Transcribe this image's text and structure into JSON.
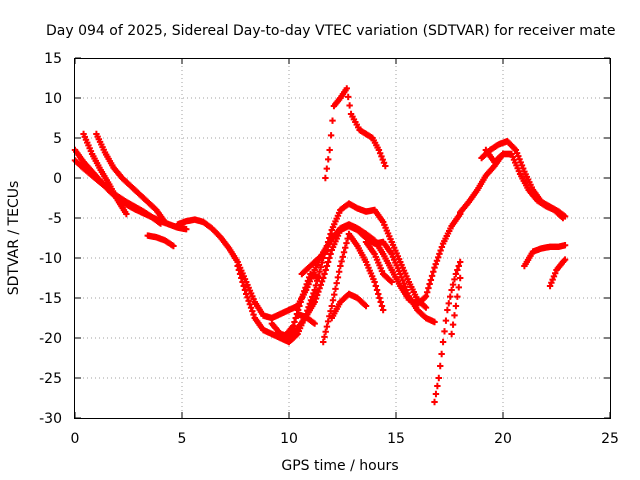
{
  "chart_data": {
    "type": "scatter",
    "title": "Day 094 of 2025, Sidereal Day-to-day VTEC variation (SDTVAR) for receiver mate",
    "xlabel": "GPS time / hours",
    "ylabel": "SDTVAR / TECUs",
    "xlim": [
      0,
      25
    ],
    "ylim": [
      -30,
      15
    ],
    "xticks": [
      "0",
      "5",
      "10",
      "15",
      "20",
      "25"
    ],
    "yticks": [
      "15",
      "10",
      "5",
      "0",
      "-5",
      "-10",
      "-15",
      "-20",
      "-25",
      "-30"
    ],
    "grid": true,
    "marker": "+",
    "color": "#ff0000",
    "series": [
      {
        "x": [
          0.0,
          0.4,
          0.8,
          1.2,
          1.6,
          2.0,
          2.4,
          2.8,
          3.2,
          3.6,
          4.0,
          4.4,
          4.8,
          5.2
        ],
        "y": [
          3.5,
          2.0,
          0.8,
          -0.4,
          -1.6,
          -2.6,
          -3.3,
          -3.9,
          -4.4,
          -4.9,
          -5.4,
          -5.8,
          -6.2,
          -6.4
        ]
      },
      {
        "x": [
          0.0,
          0.4,
          0.8,
          1.2,
          1.6,
          2.0,
          2.4,
          2.8,
          3.2,
          3.6,
          4.0
        ],
        "y": [
          2.2,
          1.2,
          0.3,
          -0.6,
          -1.5,
          -2.3,
          -3.0,
          -3.6,
          -4.2,
          -4.9,
          -5.7
        ]
      },
      {
        "x": [
          0.4,
          0.8,
          1.2,
          1.6,
          2.0,
          2.4
        ],
        "y": [
          5.5,
          3.0,
          1.0,
          -0.8,
          -2.8,
          -4.5
        ]
      },
      {
        "x": [
          1.0,
          1.4,
          1.8,
          2.2,
          2.6,
          3.0,
          3.4,
          3.8,
          4.2
        ],
        "y": [
          5.5,
          3.2,
          1.3,
          0.0,
          -1.0,
          -2.0,
          -3.0,
          -4.0,
          -5.5
        ]
      },
      {
        "x": [
          3.4,
          3.8,
          4.2,
          4.6
        ],
        "y": [
          -7.2,
          -7.4,
          -7.8,
          -8.5
        ]
      },
      {
        "x": [
          4.8,
          5.2,
          5.6,
          6.0,
          6.4,
          6.8,
          7.2,
          7.6,
          8.0,
          8.4,
          8.8,
          9.2,
          9.6,
          10.0,
          10.4,
          10.8,
          11.2,
          11.6,
          12.0,
          12.4,
          12.8,
          13.2,
          13.6,
          14.0,
          14.4,
          14.8,
          15.2,
          15.6,
          16.0,
          16.4,
          16.8,
          17.2,
          17.6,
          18.0
        ],
        "y": [
          -5.8,
          -5.4,
          -5.2,
          -5.5,
          -6.3,
          -7.4,
          -8.8,
          -10.5,
          -13.0,
          -15.5,
          -17.2,
          -17.5,
          -17.0,
          -16.5,
          -16.0,
          -14.0,
          -11.5,
          -9.3,
          -7.6,
          -6.3,
          -5.8,
          -6.3,
          -7.0,
          -7.8,
          -9.5,
          -11.5,
          -13.5,
          -15.2,
          -15.8,
          -14.8,
          -11.2,
          -8.2,
          -6.0,
          -4.5
        ]
      },
      {
        "x": [
          7.6,
          8.0,
          8.4,
          8.8,
          9.2,
          9.6,
          10.0,
          10.4,
          10.8,
          11.2,
          11.6,
          12.0,
          12.4,
          12.8,
          13.2,
          13.6,
          14.0,
          14.4,
          14.8,
          15.2,
          15.6,
          16.0,
          16.4
        ],
        "y": [
          -11.0,
          -14.5,
          -17.5,
          -19.0,
          -19.5,
          -20.0,
          -20.5,
          -19.5,
          -17.0,
          -14.0,
          -10.0,
          -6.5,
          -4.0,
          -3.2,
          -3.8,
          -4.2,
          -4.0,
          -5.5,
          -8.0,
          -10.5,
          -13.0,
          -15.2,
          -16.2
        ]
      },
      {
        "x": [
          9.2,
          9.6,
          10.0,
          10.4,
          10.8,
          11.2,
          11.6,
          12.0,
          12.4,
          12.8,
          13.2,
          13.6,
          14.0,
          14.4,
          14.8,
          15.2,
          15.6,
          16.0,
          16.4,
          16.8
        ],
        "y": [
          -18.2,
          -19.5,
          -19.8,
          -18.8,
          -17.3,
          -15.5,
          -12.5,
          -9.0,
          -6.5,
          -6.0,
          -6.5,
          -7.5,
          -8.2,
          -8.0,
          -9.5,
          -12.0,
          -14.8,
          -16.5,
          -17.5,
          -18.0
        ]
      },
      {
        "x": [
          9.4,
          9.8,
          10.2,
          10.6,
          11.0,
          11.4
        ],
        "y": [
          -19.5,
          -19.8,
          -18.5,
          -15.0,
          -12.0,
          -12.5
        ]
      },
      {
        "x": [
          10.4,
          10.8,
          11.2
        ],
        "y": [
          -17.0,
          -17.4,
          -18.2
        ]
      },
      {
        "x": [
          10.6,
          11.0,
          11.4,
          11.8
        ],
        "y": [
          -12.0,
          -11.0,
          -10.0,
          -9.0
        ]
      },
      {
        "x": [
          11.6,
          12.0,
          12.4,
          12.8,
          13.2,
          13.6,
          14.0,
          14.4
        ],
        "y": [
          -20.5,
          -16.0,
          -11.0,
          -7.0,
          -8.5,
          -10.5,
          -13.0,
          -16.5
        ]
      },
      {
        "x": [
          12.0,
          12.4,
          12.8,
          13.2,
          13.6
        ],
        "y": [
          -17.5,
          -15.5,
          -14.5,
          -15.0,
          -16.0
        ]
      },
      {
        "x": [
          13.6,
          14.0,
          14.4,
          14.8
        ],
        "y": [
          -8.0,
          -9.5,
          -12.0,
          -13.0
        ]
      },
      {
        "x": [
          11.7,
          11.9,
          12.1,
          12.4,
          12.7,
          12.9,
          13.1,
          13.3,
          13.6,
          13.9,
          14.2,
          14.5
        ],
        "y": [
          0.0,
          3.5,
          9.0,
          10.0,
          11.2,
          8.0,
          7.0,
          6.0,
          5.5,
          5.0,
          3.5,
          1.5
        ]
      },
      {
        "x": [
          16.8,
          17.0,
          17.2,
          17.4,
          17.6,
          17.8,
          18.0
        ],
        "y": [
          -28.0,
          -25.0,
          -20.5,
          -16.5,
          -14.0,
          -12.0,
          -10.5
        ]
      },
      {
        "x": [
          17.6,
          17.8,
          18.0
        ],
        "y": [
          -19.5,
          -16.0,
          -12.5
        ]
      },
      {
        "x": [
          18.0,
          18.4,
          18.8,
          19.2,
          19.6,
          20.0,
          20.4,
          20.8,
          21.2,
          21.6,
          22.0,
          22.4,
          22.8
        ],
        "y": [
          -4.3,
          -3.0,
          -1.5,
          0.3,
          1.5,
          3.0,
          3.0,
          0.5,
          -1.5,
          -2.8,
          -3.5,
          -4.0,
          -5.0
        ]
      },
      {
        "x": [
          19.0,
          19.4,
          19.8,
          20.2,
          20.6,
          21.0,
          21.4,
          21.8,
          22.2,
          22.6,
          22.9
        ],
        "y": [
          2.5,
          3.5,
          4.2,
          4.6,
          3.5,
          0.8,
          -1.5,
          -3.0,
          -3.6,
          -4.2,
          -4.8
        ]
      },
      {
        "x": [
          19.2,
          19.6,
          20.0
        ],
        "y": [
          3.5,
          2.0,
          3.0
        ]
      },
      {
        "x": [
          21.0,
          21.4,
          21.8,
          22.2,
          22.6,
          22.9
        ],
        "y": [
          -11.0,
          -9.2,
          -8.8,
          -8.6,
          -8.6,
          -8.4
        ]
      },
      {
        "x": [
          22.2,
          22.5,
          22.8,
          22.9
        ],
        "y": [
          -13.5,
          -11.5,
          -10.5,
          -10.2
        ]
      }
    ]
  }
}
